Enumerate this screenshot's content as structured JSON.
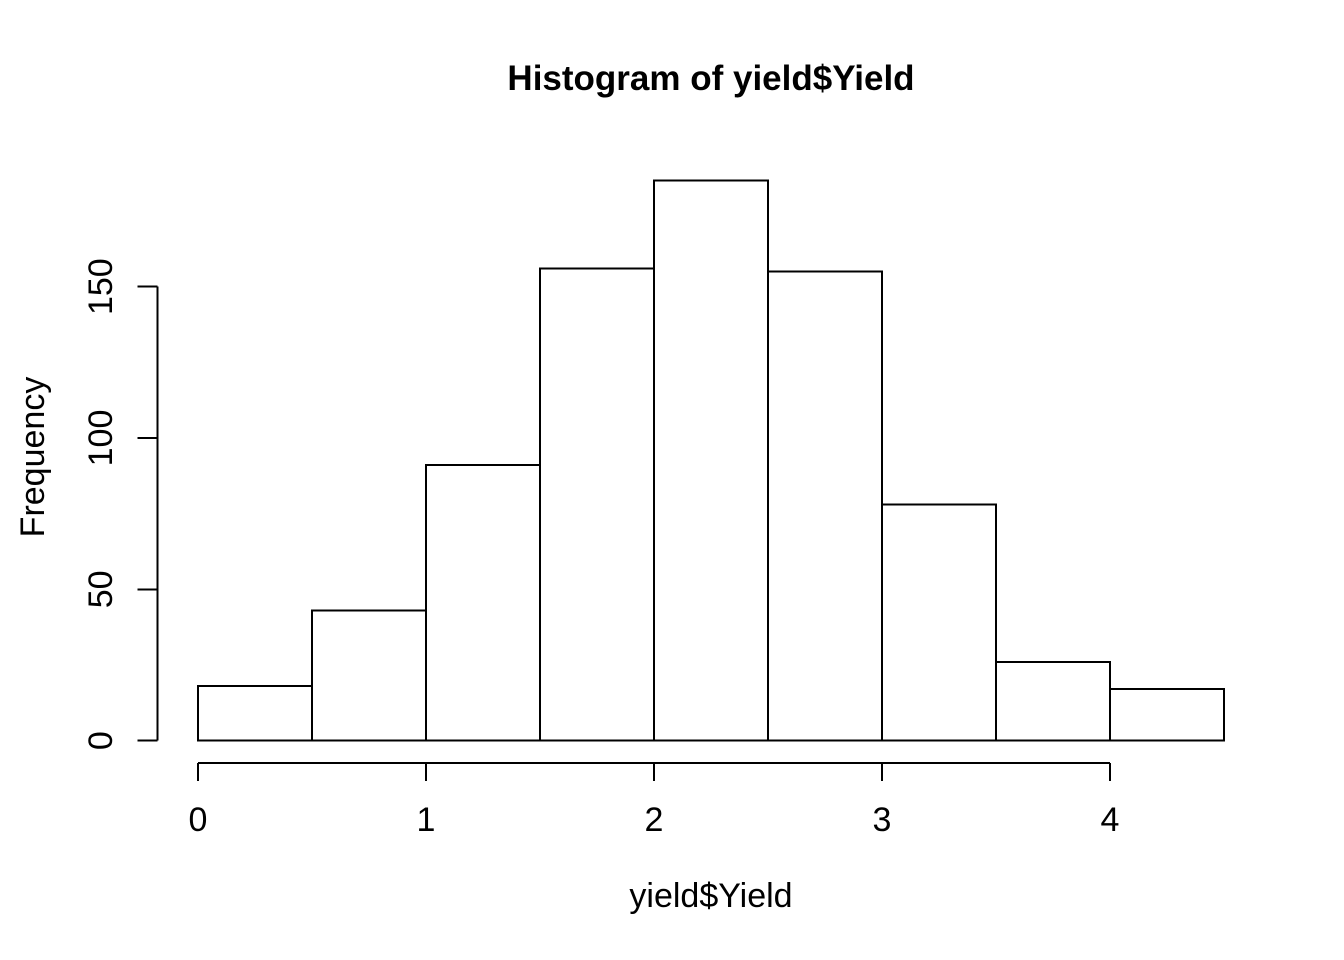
{
  "chart_data": {
    "type": "bar",
    "subtype": "histogram",
    "title": "Histogram of yield$Yield",
    "xlabel": "yield$Yield",
    "ylabel": "Frequency",
    "bin_edges": [
      0,
      0.5,
      1,
      1.5,
      2,
      2.5,
      3,
      3.5,
      4,
      4.5
    ],
    "values": [
      18,
      43,
      91,
      156,
      185,
      155,
      78,
      26,
      17
    ],
    "x_ticks": [
      0,
      1,
      2,
      3,
      4
    ],
    "y_ticks": [
      0,
      50,
      100,
      150
    ],
    "xlim": [
      0,
      4.5
    ],
    "ylim": [
      0,
      185
    ],
    "grid": false,
    "legend": false,
    "colors": {
      "background": "#ffffff",
      "bar_fill": "#ffffff",
      "bar_stroke": "#000000",
      "axis": "#000000",
      "text": "#000000"
    }
  }
}
